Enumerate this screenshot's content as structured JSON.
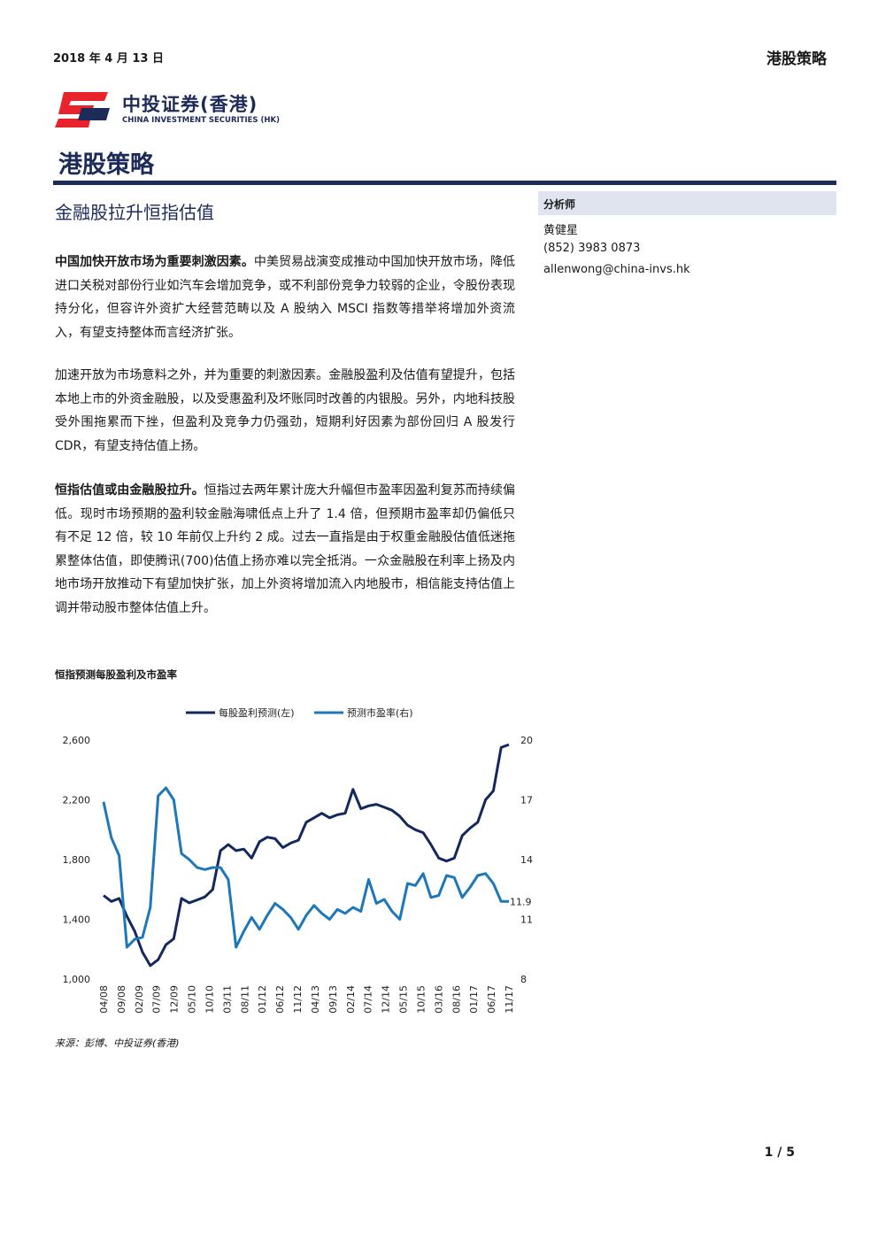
{
  "header": {
    "date": "2018 年 4 月 13 日",
    "section": "港股策略"
  },
  "logo": {
    "name_cn": "中投证券(香港)",
    "name_en": "CHINA INVESTMENT SECURITIES (HK)",
    "colors": {
      "red": "#e8232b",
      "navy": "#1c2b57"
    }
  },
  "report": {
    "category_title": "港股策略",
    "headline": "金融股拉升恒指估值"
  },
  "analyst": {
    "label": "分析师",
    "name": "黄健星",
    "phone": "(852) 3983 0873",
    "email": "allenwong@china-invs.hk"
  },
  "body": {
    "p1_bold": "中国加快开放市场为重要刺激因素。",
    "p1_text": "中美贸易战演变成推动中国加快开放市场，降低进口关税对部份行业如汽车会增加竞争，或不利部份竞争力较弱的企业，令股份表现持分化，但容许外资扩大经营范畴以及 A 股纳入 MSCI 指数等措举将增加外资流入，有望支持整体而言经济扩张。",
    "p2_text": "加速开放为市场意料之外，并为重要的刺激因素。金融股盈利及估值有望提升，包括本地上市的外资金融股，以及受惠盈利及坏账同时改善的内银股。另外，内地科技股受外围拖累而下挫，但盈利及竞争力仍强劲，短期利好因素为部份回归 A 股发行 CDR，有望支持估值上扬。",
    "p3_bold": "恒指估值或由金融股拉升。",
    "p3_text": "恒指过去两年累计庞大升幅但市盈率因盈利复苏而持续偏低。现时市场预期的盈利较金融海啸低点上升了 1.4 倍，但预期市盈率却仍偏低只有不足 12 倍，较 10 年前仅上升约 2 成。过去一直指是由于权重金融股估值低迷拖累整体估值，即使腾讯(700)估值上扬亦难以完全抵消。一众金融股在利率上扬及内地市场开放推动下有望加快扩张，加上外资将增加流入内地股市，相信能支持估值上调并带动股市整体估值上升。"
  },
  "chart_title": "恒指预测每股盈利及市盈率",
  "chart_data": {
    "type": "line",
    "legend_position": "top",
    "x_tick_labels": [
      "04/08",
      "09/08",
      "02/09",
      "07/09",
      "12/09",
      "05/10",
      "10/10",
      "03/11",
      "08/11",
      "01/12",
      "06/12",
      "11/12",
      "04/13",
      "09/13",
      "02/14",
      "07/14",
      "12/14",
      "05/15",
      "10/15",
      "03/16",
      "08/16",
      "01/17",
      "06/17",
      "11/17"
    ],
    "y_left": {
      "ylim": [
        1000,
        2600
      ],
      "ticks": [
        "1,000",
        "1,400",
        "1,800",
        "2,200",
        "2,600"
      ]
    },
    "y_right": {
      "ylim": [
        8,
        20
      ],
      "ticks": [
        "8",
        "11",
        "14",
        "17",
        "20"
      ]
    },
    "end_label": "11.9",
    "series": [
      {
        "name": "每股盈利预测(左)",
        "axis": "left",
        "color": "#13295c",
        "values": [
          1560,
          1520,
          1540,
          1420,
          1320,
          1180,
          1090,
          1130,
          1230,
          1270,
          1540,
          1510,
          1530,
          1550,
          1600,
          1860,
          1900,
          1860,
          1870,
          1810,
          1920,
          1950,
          1940,
          1880,
          1910,
          1930,
          2050,
          2080,
          2110,
          2080,
          2100,
          2110,
          2270,
          2140,
          2160,
          2170,
          2150,
          2130,
          2090,
          2030,
          2000,
          1980,
          1900,
          1810,
          1790,
          1810,
          1960,
          2010,
          2050,
          2200,
          2260,
          2550,
          2570
        ]
      },
      {
        "name": "预测市盈率(右)",
        "axis": "right",
        "color": "#1d77b8",
        "values": [
          16.9,
          15.1,
          14.2,
          9.6,
          10.0,
          10.1,
          11.6,
          17.2,
          17.6,
          17.0,
          14.3,
          14.0,
          13.6,
          13.5,
          13.6,
          13.6,
          13.0,
          9.6,
          10.4,
          11.1,
          10.5,
          11.2,
          11.8,
          11.5,
          11.1,
          10.5,
          11.2,
          11.7,
          11.3,
          11.0,
          11.5,
          11.3,
          11.6,
          11.4,
          13.0,
          11.8,
          12.0,
          11.4,
          11.0,
          12.8,
          12.7,
          13.3,
          12.1,
          12.2,
          13.2,
          13.1,
          12.1,
          12.6,
          13.2,
          13.3,
          12.8,
          11.9,
          11.9
        ]
      }
    ]
  },
  "source": "来源：彭博、中投证券(香港)",
  "page_number": "1 / 5"
}
